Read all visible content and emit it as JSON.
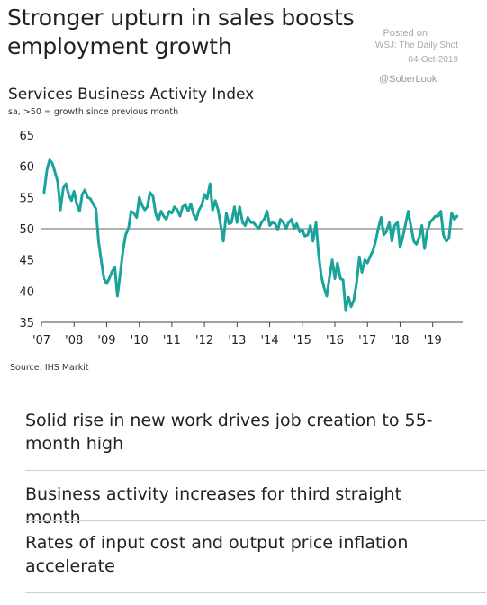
{
  "headline": "Stronger upturn in sales boosts employment growth",
  "watermark": {
    "posted": "Posted on",
    "source": "WSJ: The Daily Shot",
    "date": "04-Oct-2019",
    "handle": "@SoberLook"
  },
  "chart_data": {
    "type": "line",
    "title": "Services Business Activity Index",
    "subtitle": "sa, >50 = growth since previous month",
    "source": "Source: IHS Markit",
    "xlabel": "",
    "ylabel": "",
    "ylim": [
      35,
      65
    ],
    "xlim": [
      2007.0,
      2019.92
    ],
    "yticks": [
      35,
      40,
      45,
      50,
      55,
      60,
      65
    ],
    "xticks": [
      {
        "label": "'07",
        "x": 2007.0
      },
      {
        "label": "'08",
        "x": 2008.0
      },
      {
        "label": "'09",
        "x": 2009.0
      },
      {
        "label": "'10",
        "x": 2010.0
      },
      {
        "label": "'11",
        "x": 2011.0
      },
      {
        "label": "'12",
        "x": 2012.0
      },
      {
        "label": "'13",
        "x": 2013.0
      },
      {
        "label": "'14",
        "x": 2014.0
      },
      {
        "label": "'15",
        "x": 2015.0
      },
      {
        "label": "'16",
        "x": 2016.0
      },
      {
        "label": "'17",
        "x": 2017.0
      },
      {
        "label": "'18",
        "x": 2018.0
      },
      {
        "label": "'19",
        "x": 2019.0
      }
    ],
    "reference_line": 50,
    "grid": false,
    "color": "#1aa39a",
    "series": [
      {
        "values": [
          [
            2007.08,
            55.8
          ],
          [
            2007.17,
            59.5
          ],
          [
            2007.25,
            61.0
          ],
          [
            2007.33,
            60.5
          ],
          [
            2007.42,
            59.0
          ],
          [
            2007.5,
            57.5
          ],
          [
            2007.58,
            53.0
          ],
          [
            2007.67,
            56.5
          ],
          [
            2007.75,
            57.2
          ],
          [
            2007.83,
            55.5
          ],
          [
            2007.92,
            54.5
          ],
          [
            2008.0,
            56.0
          ],
          [
            2008.08,
            54.0
          ],
          [
            2008.17,
            52.8
          ],
          [
            2008.25,
            55.5
          ],
          [
            2008.33,
            56.2
          ],
          [
            2008.42,
            55.0
          ],
          [
            2008.5,
            54.8
          ],
          [
            2008.58,
            54.0
          ],
          [
            2008.67,
            53.2
          ],
          [
            2008.75,
            48.0
          ],
          [
            2008.83,
            45.0
          ],
          [
            2008.92,
            42.0
          ],
          [
            2009.0,
            41.2
          ],
          [
            2009.08,
            42.0
          ],
          [
            2009.17,
            43.2
          ],
          [
            2009.25,
            43.8
          ],
          [
            2009.33,
            39.2
          ],
          [
            2009.42,
            43.0
          ],
          [
            2009.5,
            46.5
          ],
          [
            2009.58,
            49.0
          ],
          [
            2009.67,
            50.0
          ],
          [
            2009.75,
            52.8
          ],
          [
            2009.83,
            52.5
          ],
          [
            2009.92,
            51.8
          ],
          [
            2010.0,
            55.0
          ],
          [
            2010.08,
            53.8
          ],
          [
            2010.17,
            53.0
          ],
          [
            2010.25,
            53.5
          ],
          [
            2010.33,
            55.8
          ],
          [
            2010.42,
            55.2
          ],
          [
            2010.5,
            52.5
          ],
          [
            2010.58,
            51.3
          ],
          [
            2010.67,
            52.8
          ],
          [
            2010.75,
            52.0
          ],
          [
            2010.83,
            51.5
          ],
          [
            2010.92,
            52.8
          ],
          [
            2011.0,
            52.5
          ],
          [
            2011.08,
            53.5
          ],
          [
            2011.17,
            53.0
          ],
          [
            2011.25,
            52.0
          ],
          [
            2011.33,
            53.5
          ],
          [
            2011.42,
            53.8
          ],
          [
            2011.5,
            52.8
          ],
          [
            2011.58,
            54.0
          ],
          [
            2011.67,
            52.2
          ],
          [
            2011.75,
            51.5
          ],
          [
            2011.83,
            53.0
          ],
          [
            2011.92,
            53.8
          ],
          [
            2012.0,
            55.5
          ],
          [
            2012.08,
            54.8
          ],
          [
            2012.17,
            57.2
          ],
          [
            2012.25,
            53.0
          ],
          [
            2012.33,
            54.5
          ],
          [
            2012.42,
            53.0
          ],
          [
            2012.5,
            50.5
          ],
          [
            2012.58,
            48.0
          ],
          [
            2012.67,
            52.5
          ],
          [
            2012.75,
            50.8
          ],
          [
            2012.83,
            51.0
          ],
          [
            2012.92,
            53.5
          ],
          [
            2013.0,
            51.0
          ],
          [
            2013.08,
            53.5
          ],
          [
            2013.17,
            51.0
          ],
          [
            2013.25,
            50.5
          ],
          [
            2013.33,
            51.8
          ],
          [
            2013.42,
            51.0
          ],
          [
            2013.5,
            51.0
          ],
          [
            2013.58,
            50.5
          ],
          [
            2013.67,
            50.0
          ],
          [
            2013.75,
            51.0
          ],
          [
            2013.83,
            51.5
          ],
          [
            2013.92,
            52.8
          ],
          [
            2014.0,
            50.5
          ],
          [
            2014.08,
            51.0
          ],
          [
            2014.17,
            50.8
          ],
          [
            2014.25,
            49.8
          ],
          [
            2014.33,
            51.5
          ],
          [
            2014.42,
            51.0
          ],
          [
            2014.5,
            50.0
          ],
          [
            2014.58,
            51.0
          ],
          [
            2014.67,
            51.5
          ],
          [
            2014.75,
            50.0
          ],
          [
            2014.83,
            50.8
          ],
          [
            2014.92,
            49.5
          ],
          [
            2015.0,
            49.8
          ],
          [
            2015.08,
            48.8
          ],
          [
            2015.17,
            49.0
          ],
          [
            2015.25,
            50.5
          ],
          [
            2015.33,
            48.0
          ],
          [
            2015.42,
            51.0
          ],
          [
            2015.5,
            46.0
          ],
          [
            2015.58,
            42.5
          ],
          [
            2015.67,
            40.5
          ],
          [
            2015.75,
            39.2
          ],
          [
            2015.83,
            42.0
          ],
          [
            2015.92,
            45.0
          ],
          [
            2016.0,
            42.0
          ],
          [
            2016.08,
            44.5
          ],
          [
            2016.17,
            42.0
          ],
          [
            2016.25,
            41.8
          ],
          [
            2016.33,
            37.0
          ],
          [
            2016.42,
            39.0
          ],
          [
            2016.5,
            37.5
          ],
          [
            2016.58,
            38.5
          ],
          [
            2016.67,
            41.5
          ],
          [
            2016.75,
            45.5
          ],
          [
            2016.83,
            43.0
          ],
          [
            2016.92,
            45.0
          ],
          [
            2017.0,
            44.5
          ],
          [
            2017.08,
            45.5
          ],
          [
            2017.17,
            46.5
          ],
          [
            2017.25,
            48.0
          ],
          [
            2017.33,
            50.0
          ],
          [
            2017.42,
            51.8
          ],
          [
            2017.5,
            49.0
          ],
          [
            2017.58,
            49.5
          ],
          [
            2017.67,
            51.0
          ],
          [
            2017.75,
            48.0
          ],
          [
            2017.83,
            50.5
          ],
          [
            2017.92,
            51.0
          ],
          [
            2018.0,
            47.0
          ],
          [
            2018.08,
            48.5
          ],
          [
            2018.17,
            50.8
          ],
          [
            2018.25,
            52.8
          ],
          [
            2018.33,
            50.5
          ],
          [
            2018.42,
            48.0
          ],
          [
            2018.5,
            47.5
          ],
          [
            2018.58,
            48.5
          ],
          [
            2018.67,
            50.5
          ],
          [
            2018.75,
            46.8
          ],
          [
            2018.83,
            49.5
          ],
          [
            2018.92,
            51.0
          ],
          [
            2019.0,
            51.5
          ],
          [
            2019.08,
            52.0
          ],
          [
            2019.17,
            52.0
          ],
          [
            2019.25,
            52.8
          ],
          [
            2019.33,
            49.0
          ],
          [
            2019.42,
            48.0
          ],
          [
            2019.5,
            48.5
          ],
          [
            2019.58,
            52.5
          ],
          [
            2019.67,
            51.5
          ],
          [
            2019.75,
            52.0
          ]
        ]
      }
    ]
  },
  "bullets": [
    "Solid rise in new work drives job creation to 55-month high",
    "Business activity increases for third straight month",
    "Rates of input cost and output price inflation accelerate"
  ]
}
